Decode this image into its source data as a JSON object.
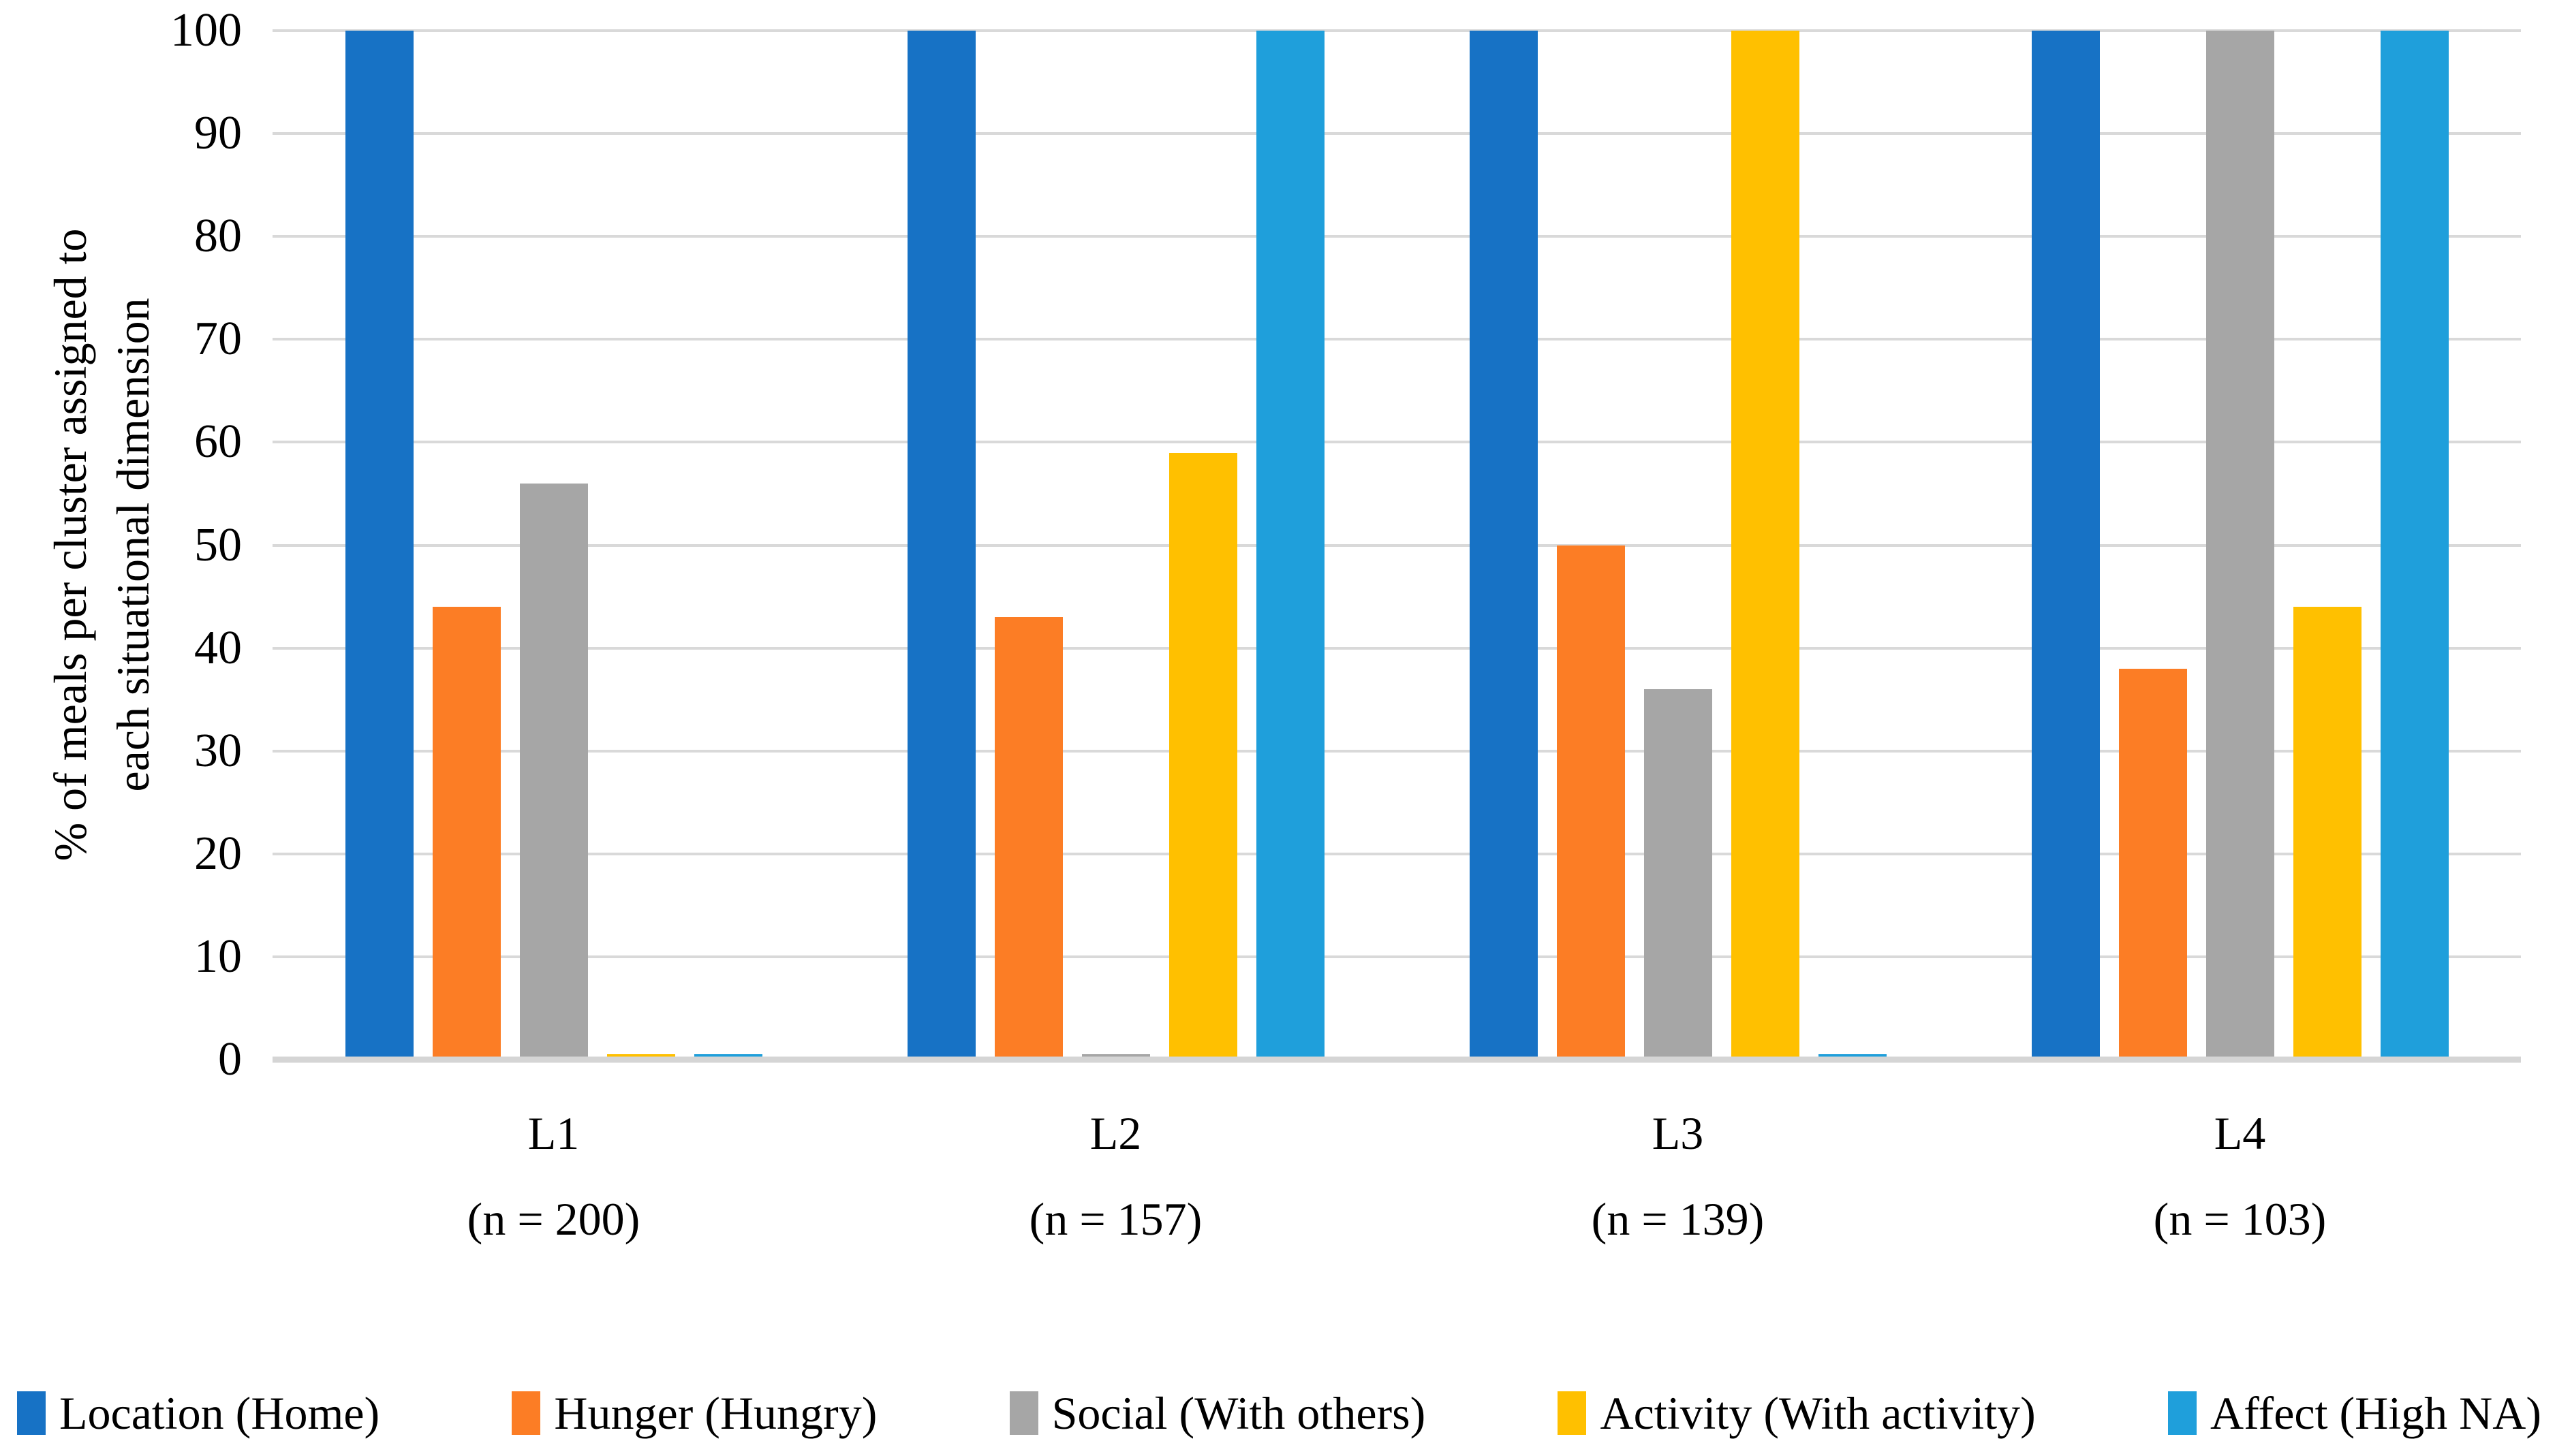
{
  "chart_data": {
    "type": "bar",
    "title": "",
    "ylabel_lines": [
      "% of meals per cluster assigned to",
      "each situational dimension"
    ],
    "xlabel": "",
    "ylim": [
      0,
      100
    ],
    "ytick_step": 10,
    "yticks": [
      0,
      10,
      20,
      30,
      40,
      50,
      60,
      70,
      80,
      90,
      100
    ],
    "grid": "horizontal",
    "gridline_color": "#d9d9d9",
    "legend_position": "bottom",
    "categories": [
      {
        "label": "L1",
        "sublabel": "(n = 200)"
      },
      {
        "label": "L2",
        "sublabel": "(n = 157)"
      },
      {
        "label": "L3",
        "sublabel": "(n = 139)"
      },
      {
        "label": "L4",
        "sublabel": "(n = 103)"
      }
    ],
    "series": [
      {
        "name": "Location (Home)",
        "color": "#1772c5",
        "values": [
          100,
          100,
          100,
          100
        ]
      },
      {
        "name": "Hunger (Hungry)",
        "color": "#fc7d25",
        "values": [
          44,
          43,
          50,
          38
        ]
      },
      {
        "name": "Social (With others)",
        "color": "#a6a6a6",
        "values": [
          56,
          0.5,
          36,
          100
        ]
      },
      {
        "name": "Activity (With activity)",
        "color": "#ffc000",
        "values": [
          0.5,
          59,
          100,
          44
        ]
      },
      {
        "name": "Affect (High NA)",
        "color": "#1f9fdb",
        "values": [
          0.5,
          100,
          0.5,
          100
        ]
      }
    ]
  }
}
